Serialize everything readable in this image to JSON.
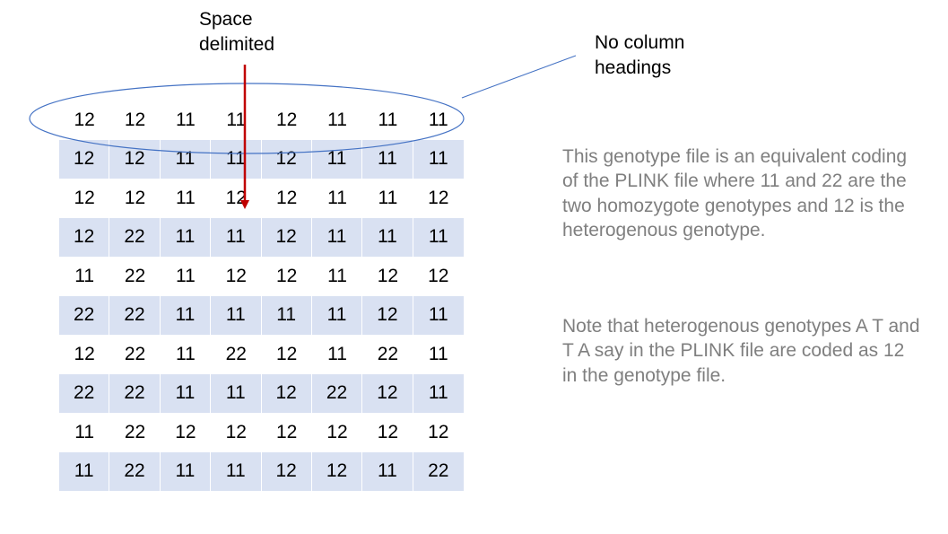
{
  "labels": {
    "space_delimited": [
      "Space",
      "delimited"
    ],
    "no_column_headings": [
      "No column",
      "headings"
    ]
  },
  "notes": {
    "note1": "This genotype file is an equivalent coding of the PLINK file where 11 and 22 are the two homozygote genotypes and 12 is the heterogenous genotype.",
    "note2": "Note that heterogenous genotypes A T and T A say in the PLINK file are coded as 12 in the genotype file."
  },
  "genotype_rows": [
    [
      "12",
      "12",
      "11",
      "11",
      "12",
      "11",
      "11",
      "11"
    ],
    [
      "12",
      "12",
      "11",
      "11",
      "12",
      "11",
      "11",
      "11"
    ],
    [
      "12",
      "12",
      "11",
      "12",
      "12",
      "11",
      "11",
      "12"
    ],
    [
      "12",
      "22",
      "11",
      "11",
      "12",
      "11",
      "11",
      "11"
    ],
    [
      "11",
      "22",
      "11",
      "12",
      "12",
      "11",
      "12",
      "12"
    ],
    [
      "22",
      "22",
      "11",
      "11",
      "11",
      "11",
      "12",
      "11"
    ],
    [
      "12",
      "22",
      "11",
      "22",
      "12",
      "11",
      "22",
      "11"
    ],
    [
      "22",
      "22",
      "11",
      "11",
      "12",
      "22",
      "12",
      "11"
    ],
    [
      "11",
      "22",
      "12",
      "12",
      "12",
      "12",
      "12",
      "12"
    ],
    [
      "11",
      "22",
      "11",
      "11",
      "12",
      "12",
      "11",
      "22"
    ]
  ],
  "colors": {
    "row_shade": "#d9e1f2",
    "ellipse_stroke": "#4472c4",
    "arrow": "#c00000",
    "note_text": "#7f7f7f"
  }
}
